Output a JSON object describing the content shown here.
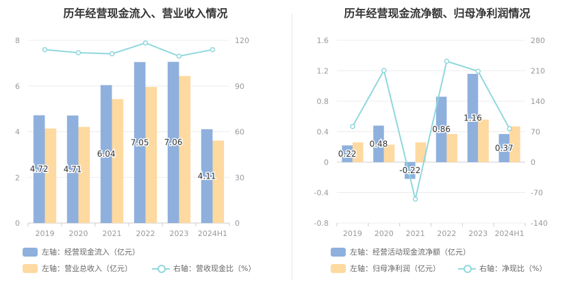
{
  "colors": {
    "bar_blue": "#8fb0dd",
    "bar_orange": "#fed9a0",
    "line": "#90d7dd",
    "axis_text": "#999999",
    "grid": "#ececec"
  },
  "chart_data": [
    {
      "type": "bar",
      "title": "历年经营现金流入、营业收入情况",
      "categories": [
        "2019",
        "2020",
        "2021",
        "2022",
        "2023",
        "2024H1"
      ],
      "ylim_left": [
        0,
        8
      ],
      "ylim_right": [
        0,
        120
      ],
      "yticks_left": [
        "0",
        "2",
        "4",
        "6",
        "8"
      ],
      "yticks_right": [
        "0",
        "30",
        "60",
        "90",
        "120"
      ],
      "series": [
        {
          "name": "左轴：经营现金流入（亿元）",
          "axis": "left",
          "kind": "bar",
          "values": [
            4.72,
            4.71,
            6.04,
            7.05,
            7.06,
            4.11
          ],
          "labels": [
            "4.72",
            "4.71",
            "6.04",
            "7.05",
            "7.06",
            "4.11"
          ]
        },
        {
          "name": "左轴：营业总收入（亿元）",
          "axis": "left",
          "kind": "bar",
          "values": [
            4.14,
            4.21,
            5.43,
            5.96,
            6.44,
            3.61
          ]
        },
        {
          "name": "右轴：营收现金比（%）",
          "axis": "right",
          "kind": "line",
          "values": [
            113.9,
            111.9,
            111.2,
            118.3,
            109.6,
            113.9
          ]
        }
      ]
    },
    {
      "type": "bar",
      "title": "历年经营现金流净额、归母净利润情况",
      "categories": [
        "2019",
        "2020",
        "2021",
        "2022",
        "2023",
        "2024H1"
      ],
      "ylim_left": [
        -0.8,
        1.6
      ],
      "ylim_right": [
        -140,
        280
      ],
      "yticks_left": [
        "-0.8",
        "-0.4",
        "0",
        "0.4",
        "0.8",
        "1.2",
        "1.6"
      ],
      "yticks_right": [
        "-140",
        "-70",
        "0",
        "70",
        "140",
        "210",
        "280"
      ],
      "series": [
        {
          "name": "左轴：经营活动现金流净额（亿元）",
          "axis": "left",
          "kind": "bar",
          "values": [
            0.22,
            0.48,
            -0.22,
            0.86,
            1.16,
            0.37
          ],
          "labels": [
            "0.22",
            "0.48",
            "-0.22",
            "0.86",
            "1.16",
            "0.37"
          ]
        },
        {
          "name": "左轴：归母净利润（亿元）",
          "axis": "left",
          "kind": "bar",
          "values": [
            0.26,
            0.23,
            0.26,
            0.37,
            0.56,
            0.47
          ]
        },
        {
          "name": "右轴：净现比（%）",
          "axis": "right",
          "kind": "line",
          "values": [
            82,
            211,
            -85,
            232,
            209,
            77
          ]
        }
      ]
    }
  ]
}
